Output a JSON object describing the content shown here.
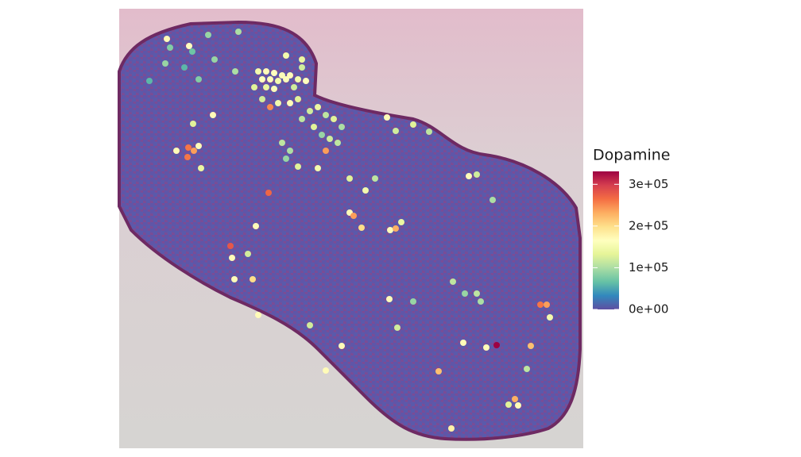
{
  "chart_data": {
    "type": "scatter",
    "legend_title": "Dopamine",
    "x": [
      60,
      88,
      92,
      112,
      38,
      82,
      100,
      175,
      185,
      195,
      205,
      215,
      180,
      190,
      200,
      210,
      225,
      235,
      170,
      185,
      195,
      220,
      180,
      200,
      190,
      215,
      225,
      240,
      250,
      260,
      270,
      280,
      230,
      245,
      255,
      265,
      275,
      260,
      205,
      215,
      225,
      250,
      210,
      87,
      94,
      100,
      86,
      72,
      103,
      118,
      93,
      188,
      140,
      142,
      145,
      168,
      162,
      175,
      172,
      290,
      295,
      305,
      341,
      348,
      355,
      337,
      348,
      370,
      390,
      440,
      450,
      470,
      475,
      530,
      538,
      542,
      518,
      462,
      433,
      402,
      418,
      498,
      502,
      490,
      513,
      280,
      260,
      240,
      420,
      435,
      450,
      455,
      370,
      340,
      350,
      322,
      310,
      290,
      150,
      58,
      64,
      120,
      146,
      210,
      230,
      230
    ],
    "y": [
      38,
      47,
      54,
      33,
      91,
      74,
      89,
      79,
      79,
      81,
      84,
      84,
      89,
      89,
      91,
      89,
      89,
      91,
      99,
      99,
      101,
      99,
      114,
      119,
      124,
      119,
      114,
      129,
      124,
      134,
      139,
      149,
      139,
      149,
      159,
      164,
      169,
      179,
      169,
      179,
      199,
      201,
      189,
      175,
      179,
      173,
      187,
      179,
      201,
      134,
      145,
      232,
      299,
      314,
      341,
      341,
      309,
      386,
      274,
      257,
      261,
      276,
      279,
      277,
      269,
      137,
      154,
      146,
      155,
      211,
      209,
      241,
      424,
      373,
      373,
      389,
      425,
      427,
      421,
      457,
      529,
      492,
      500,
      499,
      454,
      425,
      456,
      399,
      344,
      359,
      359,
      369,
      369,
      366,
      402,
      214,
      229,
      214,
      29,
      69,
      49,
      64,
      79,
      59,
      74,
      64
    ],
    "values": [
      170000,
      165000,
      70000,
      90000,
      60000,
      60000,
      80000,
      150000,
      170000,
      165000,
      160000,
      170000,
      165000,
      170000,
      150000,
      160000,
      150000,
      165000,
      130000,
      140000,
      160000,
      120000,
      120000,
      150000,
      250000,
      170000,
      130000,
      120000,
      140000,
      110000,
      130000,
      100000,
      110000,
      130000,
      90000,
      120000,
      110000,
      240000,
      110000,
      100000,
      130000,
      150000,
      90000,
      260000,
      240000,
      170000,
      260000,
      170000,
      140000,
      170000,
      130000,
      270000,
      280000,
      170000,
      170000,
      200000,
      120000,
      170000,
      170000,
      170000,
      240000,
      200000,
      170000,
      230000,
      140000,
      170000,
      120000,
      130000,
      110000,
      170000,
      120000,
      100000,
      331000,
      260000,
      240000,
      150000,
      220000,
      170000,
      170000,
      220000,
      180000,
      230000,
      170000,
      130000,
      110000,
      170000,
      170000,
      120000,
      110000,
      90000,
      110000,
      100000,
      90000,
      170000,
      120000,
      110000,
      150000,
      130000,
      100000,
      90000,
      80000,
      90000,
      100000,
      150000,
      120000,
      140000
    ],
    "xlim": [
      0,
      584
    ],
    "ylim": [
      0,
      554
    ],
    "colormap": [
      "#5E4FA2",
      "#3288BD",
      "#66C2A5",
      "#ABDDA4",
      "#E6F598",
      "#FFFFBF",
      "#FEE08B",
      "#FDAE61",
      "#F46D43",
      "#D53E4F",
      "#9E0142"
    ],
    "clim": [
      0,
      331000
    ],
    "cticks": [
      {
        "value": 0,
        "label": "0e+00"
      },
      {
        "value": 100000,
        "label": "1e+05"
      },
      {
        "value": 200000,
        "label": "2e+05"
      },
      {
        "value": 300000,
        "label": "3e+05"
      }
    ]
  }
}
